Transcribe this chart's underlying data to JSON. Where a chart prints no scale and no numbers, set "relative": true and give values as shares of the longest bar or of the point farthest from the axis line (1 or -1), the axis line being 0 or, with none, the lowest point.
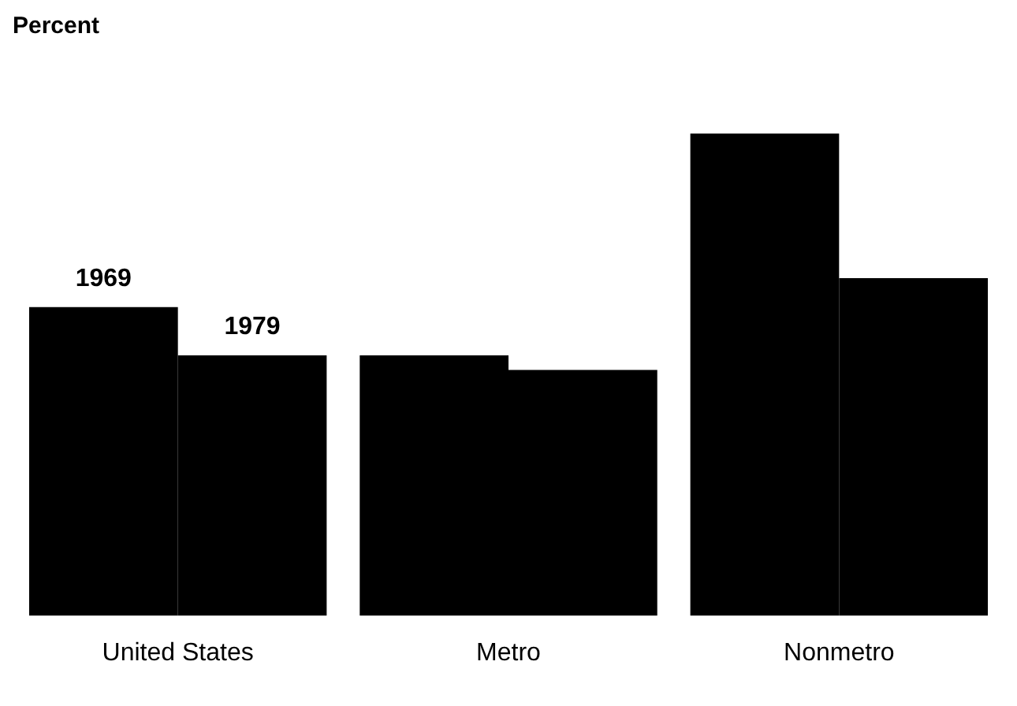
{
  "chart_data": {
    "type": "bar",
    "ylabel": "Percent",
    "relative": true,
    "categories": [
      "United States",
      "Metro",
      "Nonmetro"
    ],
    "series": [
      {
        "name": "1969",
        "color": "#000000",
        "values": [
          0.64,
          0.54,
          1
        ]
      },
      {
        "name": "1979",
        "color": "#000000",
        "values": [
          0.54,
          0.51,
          0.7
        ]
      }
    ],
    "legend": false,
    "grid": false
  }
}
